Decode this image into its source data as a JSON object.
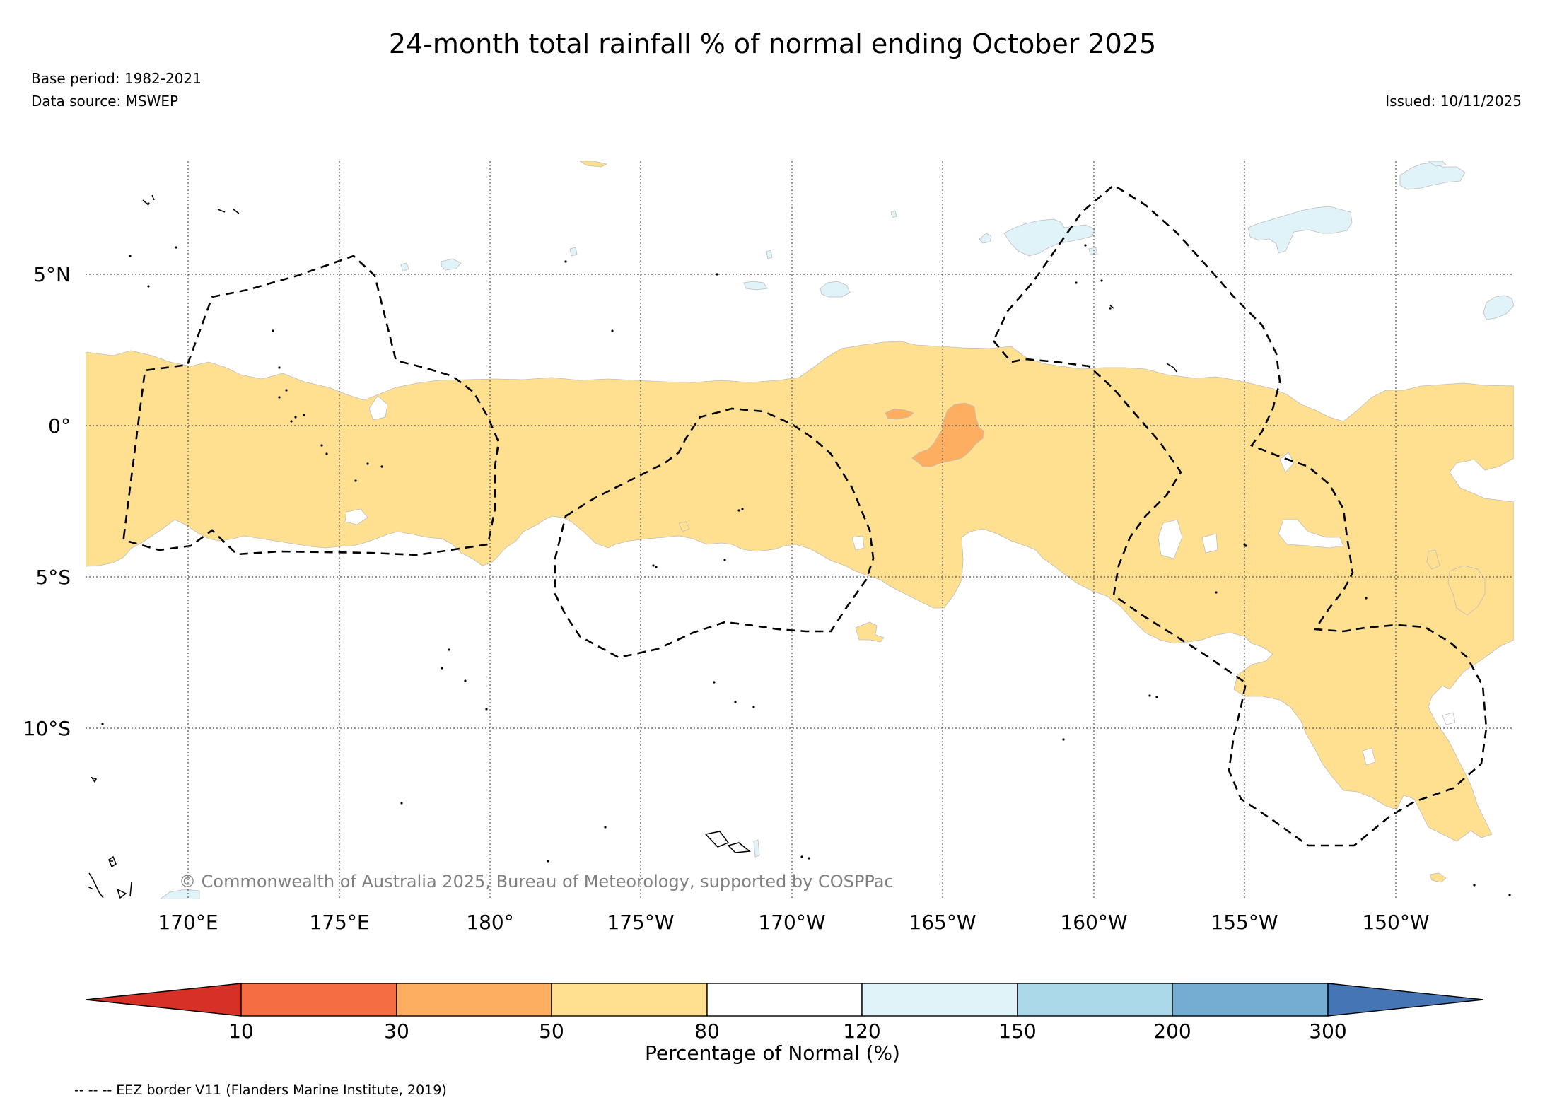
{
  "title": "24-month total rainfall % of normal ending October 2025",
  "meta": {
    "base_period": "Base period: 1982-2021",
    "data_source": "Data source: MSWEP",
    "issued": "Issued: 10/11/2025"
  },
  "map": {
    "latitude_labels": [
      "5°N",
      "0°",
      "5°S",
      "10°S"
    ],
    "longitude_labels": [
      "170°E",
      "175°E",
      "180°",
      "175°W",
      "170°W",
      "165°W",
      "160°W",
      "155°W",
      "150°W"
    ],
    "copyright": "© Commonwealth of Australia 2025, Bureau of Meteorology, supported by COSPPac"
  },
  "colorbar": {
    "title": "Percentage of Normal (%)",
    "tick_labels": [
      "10",
      "30",
      "50",
      "80",
      "120",
      "150",
      "200",
      "300"
    ],
    "colors": [
      "#d73027",
      "#f46d43",
      "#fdae61",
      "#fee090",
      "#ffffff",
      "#e0f3f8",
      "#abd9e9",
      "#74add1",
      "#4575b4"
    ]
  },
  "footnote": "-- -- -- EEZ border V11 (Flanders Marine Institute, 2019)"
}
